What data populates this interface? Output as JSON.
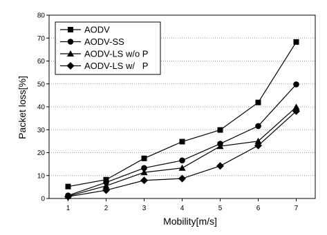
{
  "chart_data": {
    "type": "line",
    "title": "",
    "xlabel": "Mobility[m/s]",
    "ylabel": "Packet loss[%]",
    "x": [
      1,
      2,
      3,
      4,
      5,
      6,
      7
    ],
    "xlim": [
      0.5,
      7.5
    ],
    "ylim": [
      0,
      80
    ],
    "xticks": [
      "1",
      "2",
      "3",
      "4",
      "5",
      "6",
      "7"
    ],
    "yticks": [
      "0",
      "10",
      "20",
      "30",
      "40",
      "50",
      "60",
      "70",
      "80"
    ],
    "grid": "horizontal-dotted",
    "legend_position": "top-left",
    "series": [
      {
        "name": "AODV",
        "marker": "square",
        "values": [
          5.2,
          8.2,
          17.5,
          24.8,
          29.9,
          41.9,
          68.3
        ]
      },
      {
        "name": "AODV-SS",
        "marker": "circle",
        "values": [
          1.3,
          7.0,
          13.3,
          16.6,
          23.9,
          31.6,
          49.8
        ]
      },
      {
        "name": "AODV-LS w/o P",
        "marker": "triangle",
        "values": [
          1.0,
          5.5,
          11.4,
          13.3,
          22.8,
          25.0,
          39.9
        ]
      },
      {
        "name": "AODV-LS w/   P",
        "marker": "diamond",
        "values": [
          0.8,
          3.6,
          7.9,
          8.7,
          14.2,
          23.1,
          38.1
        ]
      }
    ]
  }
}
